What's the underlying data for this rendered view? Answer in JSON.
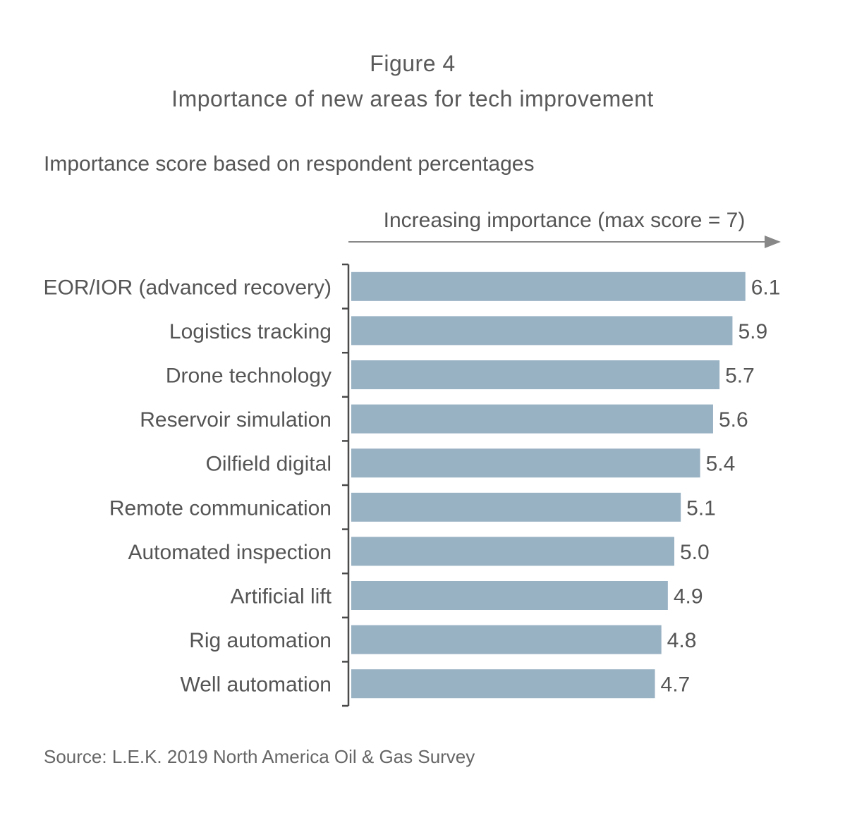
{
  "figure": {
    "label": "Figure 4",
    "title": "Importance of new areas for tech improvement",
    "subtitle": "Importance score based on respondent percentages",
    "source": "Source: L.E.K. 2019 North America Oil & Gas Survey"
  },
  "colors": {
    "bar": "#98b1c3",
    "axis": "#4a4a4a",
    "text": "#555555",
    "arrow": "#888888"
  },
  "chart_data": {
    "type": "bar",
    "orientation": "horizontal",
    "axis_note": "Increasing importance (max score = 7)",
    "categories": [
      "EOR/IOR (advanced recovery)",
      "Logistics tracking",
      "Drone technology",
      "Reservoir simulation",
      "Oilfield digital",
      "Remote communication",
      "Automated inspection",
      "Artificial lift",
      "Rig automation",
      "Well automation"
    ],
    "values": [
      6.1,
      5.9,
      5.7,
      5.6,
      5.4,
      5.1,
      5.0,
      4.9,
      4.8,
      4.7
    ],
    "data_labels": [
      "6.1",
      "5.9",
      "5.7",
      "5.6",
      "5.4",
      "5.1",
      "5.0",
      "4.9",
      "4.8",
      "4.7"
    ],
    "xlim": [
      0,
      7
    ],
    "grid": false,
    "legend": "none"
  }
}
